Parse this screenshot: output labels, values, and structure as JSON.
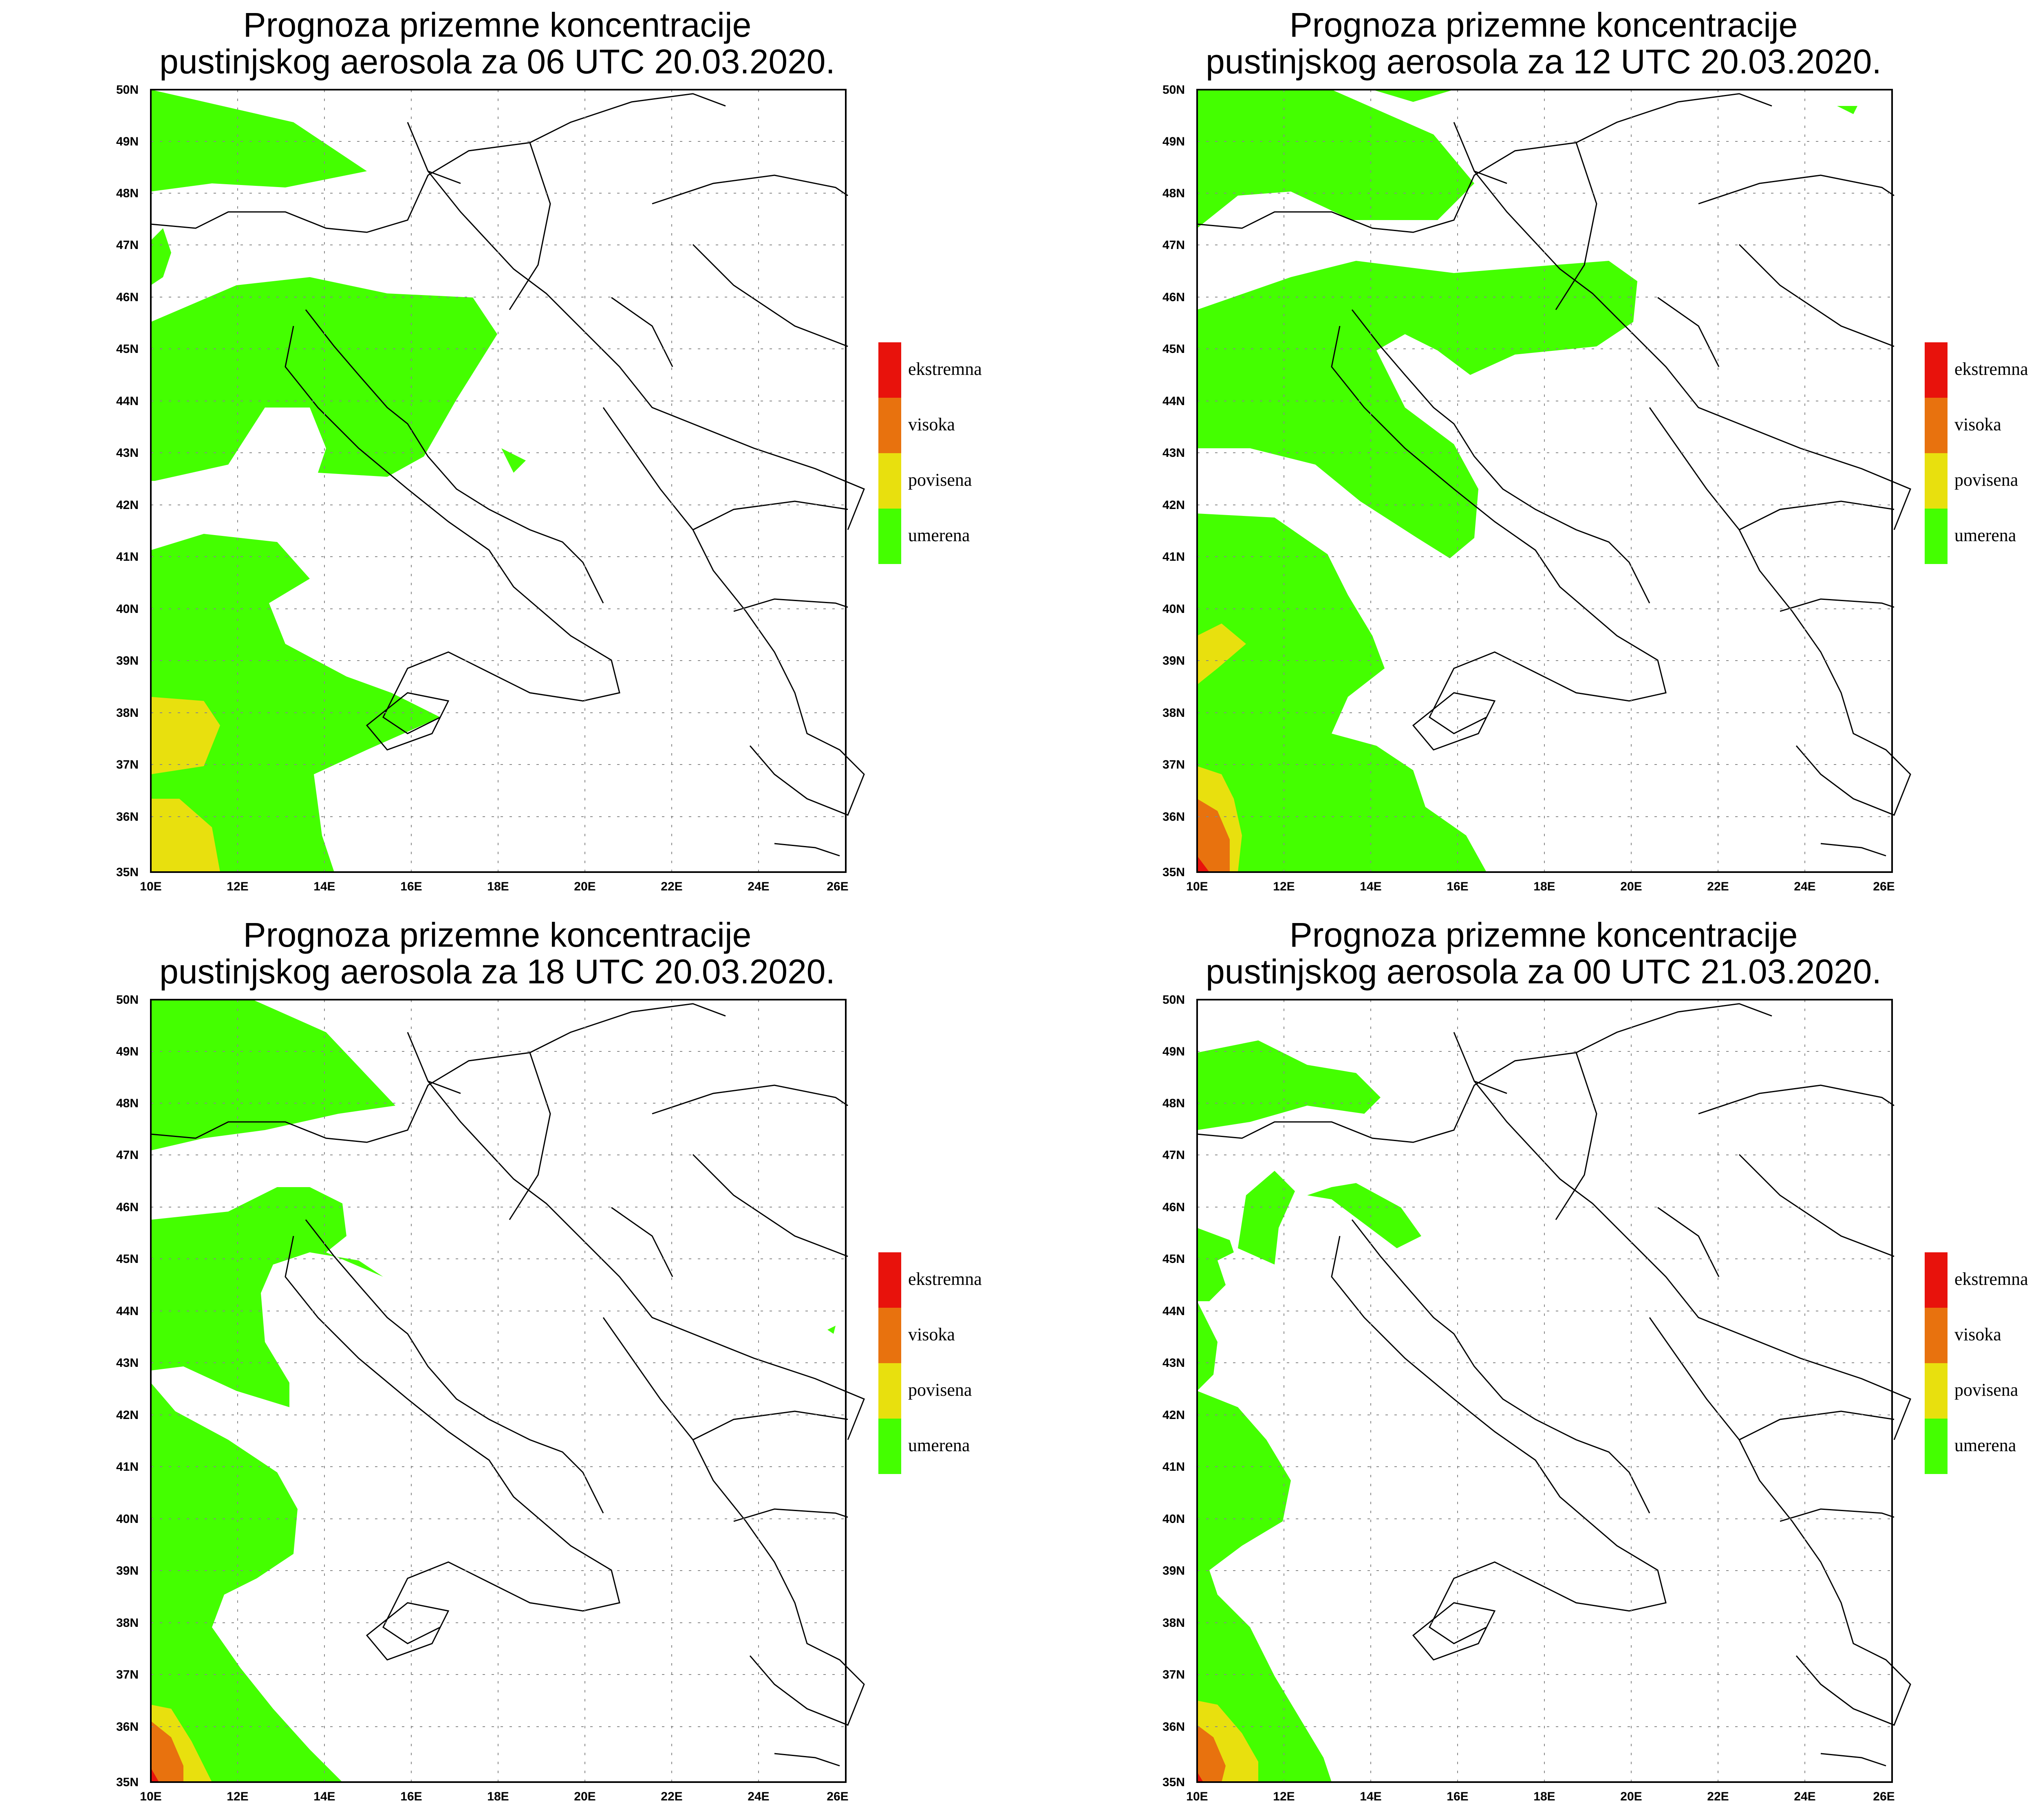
{
  "panels": [
    {
      "title_line1": "Prognoza prizemne koncentracije",
      "title_line2": "pustinjskog aerosola za 06 UTC 20.03.2020."
    },
    {
      "title_line1": "Prognoza prizemne koncentracije",
      "title_line2": "pustinjskog aerosola za 12 UTC 20.03.2020."
    },
    {
      "title_line1": "Prognoza prizemne koncentracije",
      "title_line2": "pustinjskog aerosola za 18 UTC 20.03.2020."
    },
    {
      "title_line1": "Prognoza prizemne koncentracije",
      "title_line2": "pustinjskog aerosola za 00 UTC 21.03.2020."
    }
  ],
  "axes": {
    "lat_labels": [
      "50N",
      "49N",
      "48N",
      "47N",
      "46N",
      "45N",
      "44N",
      "43N",
      "42N",
      "41N",
      "40N",
      "39N",
      "38N",
      "37N",
      "36N",
      "35N"
    ],
    "lon_labels": [
      "10E",
      "12E",
      "14E",
      "16E",
      "18E",
      "20E",
      "22E",
      "24E",
      "26E"
    ],
    "lat_range": [
      35,
      50
    ],
    "lon_range": [
      10,
      26
    ]
  },
  "legend": [
    {
      "label": "ekstremna",
      "color": "#e8120c"
    },
    {
      "label": "visoka",
      "color": "#e8720e"
    },
    {
      "label": "povisena",
      "color": "#e8e00e"
    },
    {
      "label": "umerena",
      "color": "#44ff00"
    }
  ]
}
